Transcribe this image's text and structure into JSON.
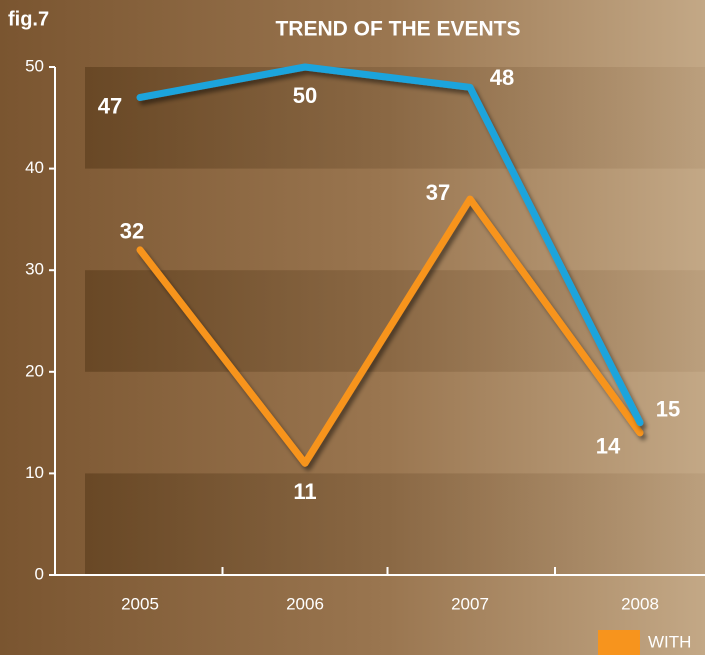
{
  "chart_data": {
    "type": "line",
    "title": "TREND OF THE EVENTS",
    "figure_label": "fig.7",
    "categories": [
      "2005",
      "2006",
      "2007",
      "2008"
    ],
    "series": [
      {
        "color": "#1ea4dc",
        "values": [
          47,
          50,
          48,
          15
        ]
      },
      {
        "name": "WITH",
        "color": "#f7941d",
        "values": [
          32,
          11,
          37,
          14
        ]
      }
    ],
    "ylim": [
      0,
      50
    ],
    "yticks": [
      0,
      10,
      20,
      30,
      40,
      50
    ],
    "grid": "bands",
    "legend": "bottom-right"
  }
}
